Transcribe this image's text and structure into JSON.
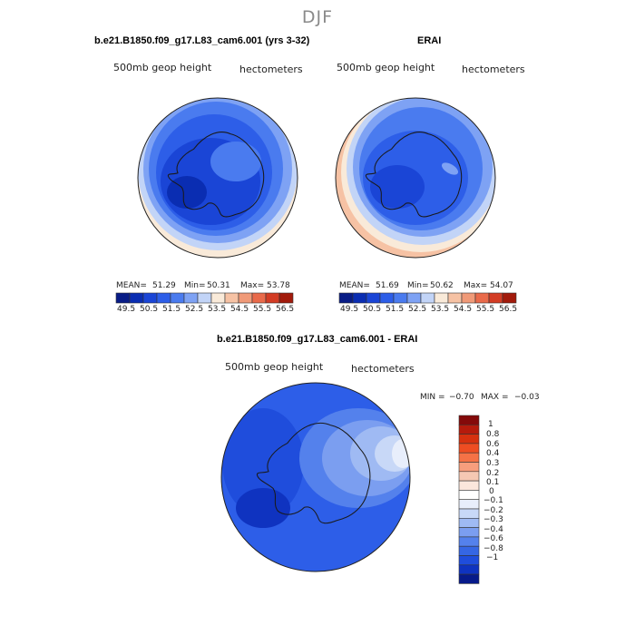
{
  "season": "DJF",
  "colors": {
    "levels13": [
      "#081c86",
      "#0a2db2",
      "#1a45d6",
      "#2d5ee8",
      "#4a7bef",
      "#7ea2f4",
      "#c2d4f7",
      "#f9ead9",
      "#f6c2a4",
      "#f09a78",
      "#e96a4a",
      "#d33c24",
      "#a21a0b"
    ],
    "levels18": [
      "#840a0a",
      "#b51b0c",
      "#d6310f",
      "#ee4d22",
      "#f57246",
      "#f79e7d",
      "#f5c8b3",
      "#fbe7dc",
      "#ffffff",
      "#e8eefb",
      "#c8d8f7",
      "#9fbaf3",
      "#7b9ef0",
      "#5481ec",
      "#3566e4",
      "#1f4ddc",
      "#0f33c0",
      "#071a8a"
    ],
    "land_line": "#1a1a1a"
  },
  "panels": [
    {
      "title": "b.e21.B1850.f09_g17.L83_cam6.001 (yrs 3-32)",
      "left_label": "500mb geop height",
      "right_label": "hectometers",
      "stats": {
        "mean_label": "MEAN=",
        "mean": "51.29",
        "min_label": "Min=",
        "min": "50.31",
        "max_label": "Max=",
        "max": "53.78"
      }
    },
    {
      "title": "ERAI",
      "left_label": "500mb geop height",
      "right_label": "hectometers",
      "stats": {
        "mean_label": "MEAN=",
        "mean": "51.69",
        "min_label": "Min=",
        "min": "50.62",
        "max_label": "Max=",
        "max": "54.07"
      }
    },
    {
      "title": "b.e21.B1850.f09_g17.L83_cam6.001 - ERAI",
      "left_label": "500mb geop height",
      "right_label": "hectometers",
      "stats": {
        "min_label": "MIN =",
        "min": "−0.70",
        "max_label": "MAX =",
        "max": "−0.03"
      }
    }
  ],
  "chart_data": [
    {
      "type": "heatmap",
      "title": "b.e21.B1850.f09_g17.L83_cam6.001 (yrs 3-32)",
      "variable": "500mb geop height",
      "units": "hectometers",
      "colorbar_ticks": [
        "49.5",
        "50.5",
        "51.5",
        "52.5",
        "53.5",
        "54.5",
        "55.5",
        "56.5"
      ],
      "mean": 51.29,
      "min": 50.31,
      "max": 53.78
    },
    {
      "type": "heatmap",
      "title": "ERAI",
      "variable": "500mb geop height",
      "units": "hectometers",
      "colorbar_ticks": [
        "49.5",
        "50.5",
        "51.5",
        "52.5",
        "53.5",
        "54.5",
        "55.5",
        "56.5"
      ],
      "mean": 51.69,
      "min": 50.62,
      "max": 54.07
    },
    {
      "type": "heatmap",
      "title": "b.e21.B1850.f09_g17.L83_cam6.001 - ERAI",
      "variable": "500mb geop height",
      "units": "hectometers",
      "colorbar_ticks": [
        "1",
        "0.8",
        "0.6",
        "0.4",
        "0.3",
        "0.2",
        "0.1",
        "0",
        "−0.1",
        "−0.2",
        "−0.3",
        "−0.4",
        "−0.6",
        "−0.8",
        "−1"
      ],
      "min": -0.7,
      "max": -0.03
    }
  ]
}
